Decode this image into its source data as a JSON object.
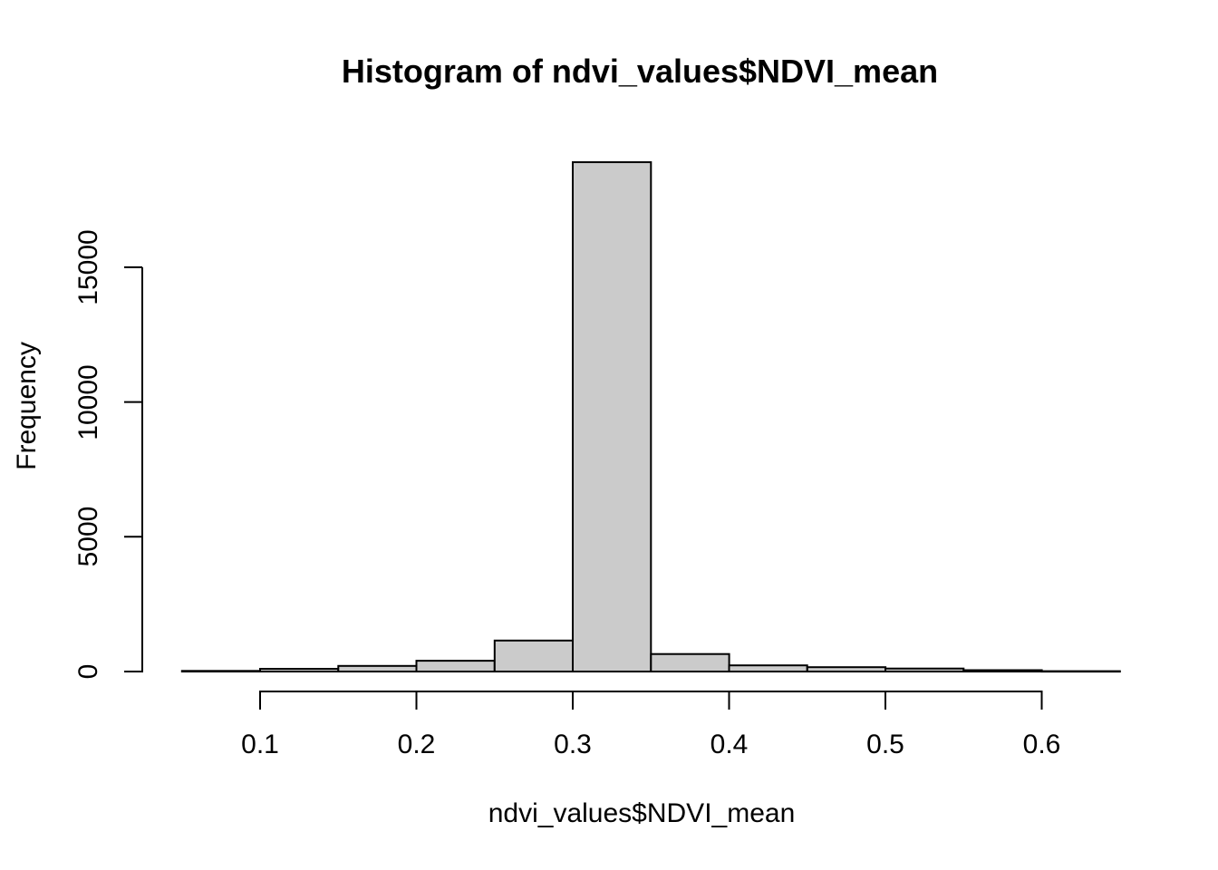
{
  "window": {
    "kind": "r-plot-device",
    "background": "#ffffff"
  },
  "colors": {
    "bar_fill": "#cbcbcb",
    "bar_stroke": "#000000",
    "axis": "#000000",
    "text": "#000000",
    "background": "#ffffff"
  },
  "chart_data": {
    "type": "bar",
    "subtype": "histogram",
    "title": "Histogram of ndvi_values$NDVI_mean",
    "xlabel": "ndvi_values$NDVI_mean",
    "ylabel": "Frequency",
    "grid": false,
    "legend": false,
    "bin_width": 0.05,
    "bin_edges": [
      0.05,
      0.1,
      0.15,
      0.2,
      0.25,
      0.3,
      0.35,
      0.4,
      0.45,
      0.5,
      0.55,
      0.6,
      0.65
    ],
    "counts": [
      25,
      100,
      210,
      400,
      1150,
      18900,
      650,
      230,
      160,
      110,
      50,
      15
    ],
    "xlim": [
      0.05,
      0.65
    ],
    "ylim": [
      0,
      18900
    ],
    "x_tick_values": [
      0.1,
      0.2,
      0.3,
      0.4,
      0.5,
      0.6
    ],
    "x_tick_labels": [
      "0.1",
      "0.2",
      "0.3",
      "0.4",
      "0.5",
      "0.6"
    ],
    "y_tick_values": [
      0,
      5000,
      10000,
      15000
    ],
    "y_tick_labels": [
      "0",
      "5000",
      "10000",
      "15000"
    ]
  }
}
